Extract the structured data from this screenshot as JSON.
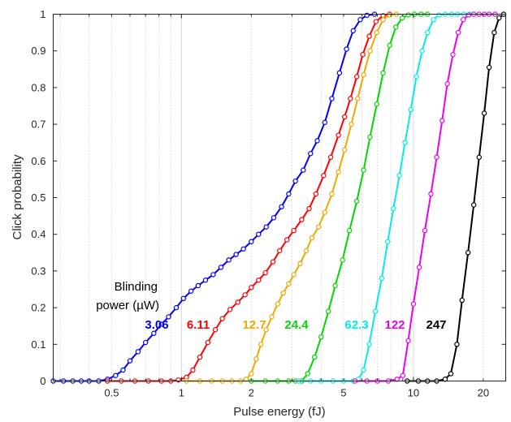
{
  "chart_data": {
    "type": "line",
    "xlabel": "Pulse energy (fJ)",
    "ylabel": "Click probability",
    "xscale": "log",
    "xlim": [
      0.28,
      25
    ],
    "ylim": [
      0,
      1
    ],
    "grid": "x-minor-dotted",
    "xticks": [
      {
        "value": 0.5,
        "label": "0.5"
      },
      {
        "value": 1,
        "label": "1"
      },
      {
        "value": 2,
        "label": "2"
      },
      {
        "value": 5,
        "label": "5"
      },
      {
        "value": 10,
        "label": "10"
      },
      {
        "value": 20,
        "label": "20"
      }
    ],
    "yticks": [
      {
        "value": 0,
        "label": "0"
      },
      {
        "value": 0.1,
        "label": "0.1"
      },
      {
        "value": 0.2,
        "label": "0.2"
      },
      {
        "value": 0.3,
        "label": "0.3"
      },
      {
        "value": 0.4,
        "label": "0.4"
      },
      {
        "value": 0.5,
        "label": "0.5"
      },
      {
        "value": 0.6,
        "label": "0.6"
      },
      {
        "value": 0.7,
        "label": "0.7"
      },
      {
        "value": 0.8,
        "label": "0.8"
      },
      {
        "value": 0.9,
        "label": "0.9"
      },
      {
        "value": 1,
        "label": "1"
      }
    ],
    "annotation": [
      "Blinding",
      "power (µW)"
    ],
    "series": [
      {
        "name": "3.06",
        "color": "#0000ff",
        "points": [
          [
            0.28,
            0
          ],
          [
            0.31,
            0
          ],
          [
            0.34,
            0
          ],
          [
            0.37,
            0
          ],
          [
            0.4,
            0
          ],
          [
            0.44,
            0
          ],
          [
            0.48,
            0.005
          ],
          [
            0.52,
            0.015
          ],
          [
            0.56,
            0.03
          ],
          [
            0.6,
            0.055
          ],
          [
            0.65,
            0.08
          ],
          [
            0.7,
            0.105
          ],
          [
            0.76,
            0.13
          ],
          [
            0.82,
            0.155
          ],
          [
            0.88,
            0.175
          ],
          [
            0.95,
            0.2
          ],
          [
            1.02,
            0.225
          ],
          [
            1.1,
            0.245
          ],
          [
            1.18,
            0.26
          ],
          [
            1.27,
            0.275
          ],
          [
            1.37,
            0.29
          ],
          [
            1.48,
            0.31
          ],
          [
            1.6,
            0.33
          ],
          [
            1.72,
            0.345
          ],
          [
            1.85,
            0.36
          ],
          [
            2.0,
            0.38
          ],
          [
            2.15,
            0.4
          ],
          [
            2.32,
            0.42
          ],
          [
            2.5,
            0.445
          ],
          [
            2.7,
            0.475
          ],
          [
            2.9,
            0.51
          ],
          [
            3.1,
            0.545
          ],
          [
            3.35,
            0.575
          ],
          [
            3.6,
            0.62
          ],
          [
            3.85,
            0.655
          ],
          [
            4.15,
            0.705
          ],
          [
            4.45,
            0.77
          ],
          [
            4.8,
            0.84
          ],
          [
            5.15,
            0.905
          ],
          [
            5.5,
            0.955
          ],
          [
            5.9,
            0.985
          ],
          [
            6.3,
            0.997
          ],
          [
            6.8,
            1
          ]
        ]
      },
      {
        "name": "6.11",
        "color": "#ff0000",
        "points": [
          [
            0.48,
            0
          ],
          [
            0.55,
            0
          ],
          [
            0.63,
            0
          ],
          [
            0.72,
            0
          ],
          [
            0.82,
            0
          ],
          [
            0.9,
            0
          ],
          [
            0.97,
            0.003
          ],
          [
            1.05,
            0.01
          ],
          [
            1.12,
            0.03
          ],
          [
            1.2,
            0.065
          ],
          [
            1.3,
            0.105
          ],
          [
            1.4,
            0.14
          ],
          [
            1.5,
            0.17
          ],
          [
            1.62,
            0.195
          ],
          [
            1.75,
            0.215
          ],
          [
            1.88,
            0.235
          ],
          [
            2.0,
            0.255
          ],
          [
            2.15,
            0.275
          ],
          [
            2.3,
            0.295
          ],
          [
            2.48,
            0.325
          ],
          [
            2.65,
            0.355
          ],
          [
            2.85,
            0.385
          ],
          [
            3.05,
            0.41
          ],
          [
            3.3,
            0.44
          ],
          [
            3.55,
            0.47
          ],
          [
            3.8,
            0.51
          ],
          [
            4.1,
            0.56
          ],
          [
            4.4,
            0.61
          ],
          [
            4.75,
            0.67
          ],
          [
            5.05,
            0.72
          ],
          [
            5.35,
            0.77
          ],
          [
            5.7,
            0.83
          ],
          [
            6.05,
            0.89
          ],
          [
            6.45,
            0.94
          ],
          [
            6.9,
            0.98
          ],
          [
            7.4,
            0.996
          ],
          [
            7.9,
            1
          ]
        ]
      },
      {
        "name": "12.7",
        "color": "#f0a800",
        "points": [
          [
            1.05,
            0
          ],
          [
            1.2,
            0
          ],
          [
            1.35,
            0
          ],
          [
            1.5,
            0
          ],
          [
            1.65,
            0
          ],
          [
            1.8,
            0
          ],
          [
            1.9,
            0.005
          ],
          [
            2.0,
            0.02
          ],
          [
            2.1,
            0.06
          ],
          [
            2.2,
            0.1
          ],
          [
            2.32,
            0.14
          ],
          [
            2.45,
            0.175
          ],
          [
            2.6,
            0.21
          ],
          [
            2.75,
            0.24
          ],
          [
            2.9,
            0.265
          ],
          [
            3.05,
            0.29
          ],
          [
            3.25,
            0.32
          ],
          [
            3.45,
            0.355
          ],
          [
            3.65,
            0.39
          ],
          [
            3.9,
            0.42
          ],
          [
            4.15,
            0.46
          ],
          [
            4.45,
            0.51
          ],
          [
            4.75,
            0.57
          ],
          [
            5.05,
            0.63
          ],
          [
            5.4,
            0.7
          ],
          [
            5.75,
            0.77
          ],
          [
            6.1,
            0.835
          ],
          [
            6.5,
            0.9
          ],
          [
            6.95,
            0.95
          ],
          [
            7.4,
            0.985
          ],
          [
            7.9,
            0.998
          ],
          [
            8.45,
            1
          ]
        ]
      },
      {
        "name": "24.4",
        "color": "#00d800",
        "points": [
          [
            2.0,
            0
          ],
          [
            2.3,
            0
          ],
          [
            2.6,
            0
          ],
          [
            2.9,
            0
          ],
          [
            3.1,
            0
          ],
          [
            3.3,
            0
          ],
          [
            3.5,
            0.02
          ],
          [
            3.75,
            0.065
          ],
          [
            4.0,
            0.12
          ],
          [
            4.3,
            0.19
          ],
          [
            4.6,
            0.26
          ],
          [
            4.95,
            0.33
          ],
          [
            5.3,
            0.41
          ],
          [
            5.7,
            0.49
          ],
          [
            6.1,
            0.575
          ],
          [
            6.5,
            0.665
          ],
          [
            6.95,
            0.755
          ],
          [
            7.4,
            0.84
          ],
          [
            7.9,
            0.915
          ],
          [
            8.4,
            0.965
          ],
          [
            8.95,
            0.99
          ],
          [
            9.5,
            0.998
          ],
          [
            10.1,
            1
          ],
          [
            10.8,
            1
          ],
          [
            11.5,
            1
          ]
        ]
      },
      {
        "name": "62.3",
        "color": "#00ecec",
        "points": [
          [
            3.2,
            0
          ],
          [
            3.6,
            0
          ],
          [
            4.0,
            0
          ],
          [
            4.5,
            0
          ],
          [
            5.0,
            0
          ],
          [
            5.5,
            0
          ],
          [
            5.8,
            0.005
          ],
          [
            6.1,
            0.03
          ],
          [
            6.45,
            0.1
          ],
          [
            6.85,
            0.19
          ],
          [
            7.3,
            0.28
          ],
          [
            7.75,
            0.38
          ],
          [
            8.2,
            0.47
          ],
          [
            8.7,
            0.56
          ],
          [
            9.2,
            0.65
          ],
          [
            9.75,
            0.74
          ],
          [
            10.3,
            0.83
          ],
          [
            10.9,
            0.9
          ],
          [
            11.5,
            0.95
          ],
          [
            12.2,
            0.985
          ],
          [
            12.9,
            0.998
          ],
          [
            13.7,
            1
          ],
          [
            14.6,
            1
          ],
          [
            15.5,
            1
          ],
          [
            16.5,
            1
          ],
          [
            17.5,
            1
          ]
        ]
      },
      {
        "name": "122",
        "color": "#ee00ee",
        "points": [
          [
            5.6,
            0
          ],
          [
            6.3,
            0
          ],
          [
            7.0,
            0
          ],
          [
            7.8,
            0
          ],
          [
            8.5,
            0.005
          ],
          [
            9.0,
            0.015
          ],
          [
            9.5,
            0.11
          ],
          [
            10.0,
            0.21
          ],
          [
            10.6,
            0.31
          ],
          [
            11.2,
            0.41
          ],
          [
            11.9,
            0.51
          ],
          [
            12.6,
            0.61
          ],
          [
            13.3,
            0.71
          ],
          [
            14.0,
            0.81
          ],
          [
            14.8,
            0.89
          ],
          [
            15.6,
            0.95
          ],
          [
            16.4,
            0.985
          ],
          [
            17.3,
            0.998
          ],
          [
            18.2,
            1
          ],
          [
            19.2,
            1
          ],
          [
            20.2,
            1
          ],
          [
            21.2,
            1
          ],
          [
            22.5,
            1
          ]
        ]
      },
      {
        "name": "247",
        "color": "#000000",
        "points": [
          [
            9.4,
            0
          ],
          [
            10.5,
            0
          ],
          [
            11.5,
            0
          ],
          [
            12.6,
            0
          ],
          [
            13.7,
            0.005
          ],
          [
            14.5,
            0.02
          ],
          [
            15.4,
            0.1
          ],
          [
            16.2,
            0.22
          ],
          [
            17.2,
            0.35
          ],
          [
            18.2,
            0.48
          ],
          [
            19.2,
            0.61
          ],
          [
            20.2,
            0.73
          ],
          [
            21.2,
            0.855
          ],
          [
            22.3,
            0.95
          ],
          [
            23.4,
            0.99
          ],
          [
            24.5,
            1
          ]
        ]
      }
    ]
  }
}
